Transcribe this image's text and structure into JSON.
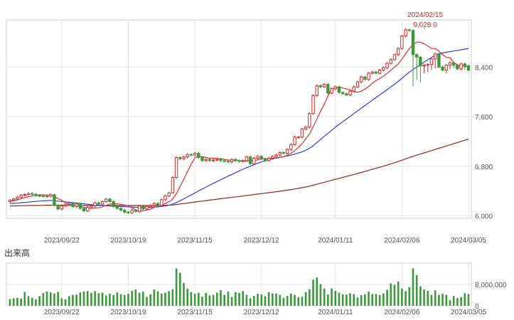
{
  "chart_data": {
    "type": "candlestick",
    "price_axis": {
      "ticks": [
        "8,400",
        "7,600",
        "6,800",
        "6,000"
      ],
      "tick_values": [
        8400,
        7600,
        6800,
        6000
      ],
      "ylim": [
        5960,
        9160
      ]
    },
    "x_tick_labels": [
      "2023/09/22",
      "2023/10/19",
      "2023/11/15",
      "2023/12/12",
      "2024/01/11",
      "2024/02/06",
      "2024/03/05"
    ],
    "x_tick_index": [
      14,
      32,
      50,
      68,
      88,
      106,
      124
    ],
    "annotation": {
      "date": "2024/02/15",
      "value_label": "9,028.0",
      "index": 112,
      "value": 9028
    },
    "volume_title": "出来高",
    "volume_axis": {
      "ticks": [
        "8,000,000",
        "0"
      ],
      "tick_values": [
        8000000,
        0
      ],
      "ylim": [
        0,
        16000000
      ]
    },
    "colors": {
      "up": "#d42a2a",
      "down": "#3a9a3a",
      "ma_short": "#e03030",
      "ma_mid": "#2f3fd8",
      "ma_long": "#8b2a1a",
      "volume": "#3a9a3a",
      "grid": "#e6e6e6",
      "frame": "#cccccc"
    },
    "series": {
      "close": [
        6250,
        6272,
        6300,
        6331,
        6344,
        6360,
        6348,
        6327,
        6320,
        6318,
        6316,
        6340,
        6170,
        6110,
        6160,
        6180,
        6200,
        6150,
        6190,
        6120,
        6080,
        6140,
        6160,
        6210,
        6190,
        6230,
        6270,
        6230,
        6150,
        6120,
        6090,
        6060,
        6050,
        6090,
        6070,
        6160,
        6110,
        6150,
        6170,
        6200,
        6170,
        6260,
        6320,
        6370,
        6620,
        6940,
        6920,
        6950,
        6990,
        6980,
        7010,
        6940,
        6890,
        6910,
        6890,
        6900,
        6910,
        6890,
        6880,
        6870,
        6910,
        6890,
        6880,
        6890,
        6950,
        6840,
        6930,
        6960,
        6920,
        6890,
        6930,
        6960,
        6980,
        7020,
        7010,
        7070,
        7150,
        7270,
        7270,
        7400,
        7430,
        7650,
        7940,
        8100,
        8080,
        8120,
        7980,
        8050,
        8080,
        7990,
        7970,
        7950,
        8010,
        8080,
        8160,
        8240,
        8200,
        8300,
        8320,
        8300,
        8350,
        8390,
        8460,
        8520,
        8600,
        8700,
        8900,
        9000,
        8990,
        8600,
        8560,
        8420,
        8430,
        8440,
        8530,
        8610,
        8400,
        8350,
        8430,
        8470,
        8430,
        8370,
        8450,
        8420,
        8350
      ],
      "open": [
        6230,
        6250,
        6272,
        6300,
        6331,
        6344,
        6360,
        6348,
        6327,
        6320,
        6318,
        6316,
        6340,
        6170,
        6110,
        6160,
        6180,
        6200,
        6150,
        6190,
        6120,
        6080,
        6140,
        6160,
        6210,
        6190,
        6230,
        6270,
        6230,
        6150,
        6120,
        6090,
        6060,
        6050,
        6090,
        6070,
        6160,
        6110,
        6150,
        6170,
        6200,
        6170,
        6260,
        6320,
        6370,
        6620,
        6940,
        6920,
        6950,
        6990,
        6980,
        7010,
        6940,
        6890,
        6910,
        6890,
        6900,
        6910,
        6890,
        6880,
        6870,
        6910,
        6890,
        6880,
        6890,
        6950,
        6840,
        6930,
        6960,
        6920,
        6890,
        6930,
        6960,
        6980,
        7020,
        7010,
        7070,
        7150,
        7270,
        7270,
        7400,
        7430,
        7650,
        7940,
        8100,
        8080,
        8120,
        7980,
        8050,
        8080,
        7990,
        7970,
        7950,
        8010,
        8080,
        8160,
        8240,
        8200,
        8300,
        8320,
        8300,
        8350,
        8390,
        8460,
        8520,
        8600,
        8700,
        8900,
        9000,
        8990,
        8600,
        8560,
        8420,
        8430,
        8440,
        8530,
        8610,
        8400,
        8350,
        8430,
        8470,
        8430,
        8370,
        8450,
        8420
      ],
      "high": [
        6273,
        6293,
        6321,
        6352,
        6365,
        6381,
        6390,
        6369,
        6348,
        6341,
        6339,
        6361,
        6361,
        6191,
        6181,
        6201,
        6221,
        6221,
        6211,
        6211,
        6141,
        6161,
        6181,
        6231,
        6231,
        6251,
        6291,
        6291,
        6251,
        6171,
        6141,
        6111,
        6081,
        6111,
        6111,
        6181,
        6181,
        6171,
        6191,
        6221,
        6221,
        6281,
        6341,
        6391,
        6641,
        6961,
        6961,
        6971,
        7011,
        7011,
        7031,
        7031,
        6961,
        6931,
        6931,
        6921,
        6931,
        6931,
        6911,
        6901,
        6931,
        6931,
        6911,
        6911,
        6971,
        6971,
        6951,
        6981,
        6981,
        6941,
        6951,
        6981,
        7001,
        7041,
        7041,
        7091,
        7171,
        7291,
        7291,
        7421,
        7451,
        7671,
        7961,
        8121,
        8121,
        8141,
        8141,
        8071,
        8101,
        8101,
        8011,
        7991,
        8031,
        8101,
        8181,
        8261,
        8261,
        8321,
        8341,
        8341,
        8371,
        8411,
        8481,
        8541,
        8621,
        8721,
        8921,
        9028,
        9021,
        9011,
        8621,
        8581,
        8451,
        8461,
        8551,
        8631,
        8631,
        8421,
        8451,
        8491,
        8491,
        8451,
        8471,
        8471,
        8441
      ],
      "low": [
        6209,
        6229,
        6251,
        6279,
        6310,
        6323,
        6327,
        6306,
        6299,
        6297,
        6295,
        6295,
        6149,
        6089,
        6089,
        6139,
        6159,
        6129,
        6129,
        6099,
        6059,
        6059,
        6119,
        6139,
        6169,
        6169,
        6209,
        6209,
        6129,
        6099,
        6069,
        6039,
        6029,
        6029,
        6049,
        6049,
        6089,
        6089,
        6129,
        6149,
        6149,
        6149,
        6239,
        6299,
        6349,
        6599,
        6899,
        6899,
        6929,
        6959,
        6959,
        6919,
        6869,
        6869,
        6869,
        6869,
        6879,
        6869,
        6859,
        6849,
        6849,
        6869,
        6859,
        6859,
        6869,
        6819,
        6819,
        6909,
        6899,
        6869,
        6869,
        6909,
        6939,
        6959,
        6989,
        6989,
        7049,
        7129,
        7249,
        7249,
        7379,
        7409,
        7629,
        7919,
        8059,
        8059,
        7959,
        7959,
        8029,
        7969,
        7949,
        7929,
        7929,
        7989,
        8059,
        8139,
        8179,
        8179,
        8279,
        8279,
        8279,
        8329,
        8369,
        8439,
        8499,
        8579,
        8679,
        8879,
        8969,
        8090,
        8200,
        8150,
        8300,
        8320,
        8350,
        8380,
        8380,
        8330,
        8300,
        8360,
        8390,
        8350,
        8340,
        8360,
        8330
      ],
      "ma_short": [
        6238,
        6243,
        6258,
        6277,
        6293,
        6307,
        6321,
        6333,
        6340,
        6339,
        6334,
        6328,
        6308,
        6278,
        6250,
        6210,
        6180,
        6171,
        6163,
        6156,
        6135,
        6121,
        6118,
        6129,
        6130,
        6146,
        6170,
        6188,
        6195,
        6194,
        6187,
        6176,
        6163,
        6126,
        6097,
        6081,
        6083,
        6094,
        6108,
        6135,
        6160,
        6175,
        6198,
        6227,
        6271,
        6357,
        6474,
        6590,
        6715,
        6830,
        6937,
        6960,
        6953,
        6942,
        6929,
        6930,
        6926,
        6924,
        6911,
        6901,
        6898,
        6892,
        6890,
        6884,
        6885,
        6891,
        6891,
        6903,
        6919,
        6920,
        6927,
        6929,
        6938,
        6944,
        6955,
        6975,
        7007,
        7052,
        7102,
        7165,
        7243,
        7318,
        7438,
        7561,
        7688,
        7798,
        7935,
        8037,
        8073,
        8072,
        8062,
        8049,
        8029,
        8005,
        7993,
        8011,
        8045,
        8087,
        8138,
        8184,
        8214,
        8255,
        8297,
        8348,
        8401,
        8451,
        8528,
        8615,
        8697,
        8766,
        8802,
        8800,
        8776,
        8738,
        8700,
        8699,
        8656,
        8599,
        8557,
        8551,
        8470,
        8438,
        8414,
        8411,
        8405
      ],
      "ma_mid": [
        6200,
        6202,
        6206,
        6211,
        6216,
        6222,
        6228,
        6233,
        6238,
        6242,
        6246,
        6249,
        6244,
        6238,
        6232,
        6226,
        6219,
        6212,
        6207,
        6201,
        6194,
        6187,
        6181,
        6176,
        6172,
        6168,
        6164,
        6160,
        6156,
        6153,
        6150,
        6147,
        6145,
        6142,
        6139,
        6138,
        6137,
        6137,
        6138,
        6142,
        6145,
        6152,
        6160,
        6171,
        6188,
        6215,
        6244,
        6274,
        6305,
        6336,
        6370,
        6402,
        6433,
        6464,
        6495,
        6524,
        6553,
        6583,
        6612,
        6640,
        6668,
        6696,
        6725,
        6751,
        6777,
        6800,
        6825,
        6848,
        6870,
        6890,
        6906,
        6918,
        6931,
        6942,
        6955,
        6966,
        6978,
        6994,
        7013,
        7034,
        7058,
        7090,
        7131,
        7181,
        7232,
        7282,
        7331,
        7379,
        7428,
        7474,
        7518,
        7561,
        7605,
        7649,
        7693,
        7738,
        7779,
        7823,
        7866,
        7909,
        7951,
        7993,
        8036,
        8078,
        8122,
        8168,
        8219,
        8269,
        8319,
        8358,
        8399,
        8439,
        8479,
        8517,
        8555,
        8592,
        8615,
        8627,
        8639,
        8649,
        8659,
        8667,
        8678,
        8690,
        8700
      ],
      "ma_long": [
        6160,
        6161,
        6162,
        6163,
        6164,
        6166,
        6167,
        6168,
        6169,
        6170,
        6171,
        6172,
        6172,
        6171,
        6171,
        6170,
        6170,
        6170,
        6169,
        6169,
        6168,
        6168,
        6168,
        6168,
        6167,
        6167,
        6167,
        6167,
        6167,
        6167,
        6166,
        6166,
        6166,
        6166,
        6166,
        6166,
        6166,
        6166,
        6166,
        6167,
        6167,
        6168,
        6170,
        6172,
        6176,
        6183,
        6190,
        6198,
        6206,
        6214,
        6223,
        6231,
        6238,
        6246,
        6254,
        6261,
        6269,
        6276,
        6283,
        6291,
        6298,
        6306,
        6312,
        6320,
        6328,
        6335,
        6343,
        6351,
        6358,
        6365,
        6373,
        6381,
        6389,
        6397,
        6406,
        6414,
        6423,
        6433,
        6443,
        6454,
        6465,
        6478,
        6493,
        6509,
        6525,
        6541,
        6557,
        6573,
        6589,
        6605,
        6620,
        6635,
        6651,
        6667,
        6683,
        6700,
        6716,
        6733,
        6750,
        6767,
        6784,
        6801,
        6819,
        6838,
        6857,
        6876,
        6897,
        6919,
        6940,
        6959,
        6978,
        6997,
        7015,
        7033,
        7052,
        7071,
        7090,
        7108,
        7127,
        7145,
        7164,
        7182,
        7201,
        7219,
        7238
      ],
      "volume": [
        2500000,
        2800000,
        3000000,
        2700000,
        5200000,
        3600000,
        3000000,
        2400000,
        3600000,
        4800000,
        5300000,
        5000000,
        4600000,
        5200000,
        2800000,
        2400000,
        3600000,
        4100000,
        4200000,
        5000000,
        5300000,
        5500000,
        4800000,
        5500000,
        4700000,
        4900000,
        3900000,
        4500000,
        4000000,
        5000000,
        4300000,
        4100000,
        4500000,
        5600000,
        6100000,
        4900000,
        5300000,
        3300000,
        4300000,
        6100000,
        5400000,
        4600000,
        4900000,
        5500000,
        6200000,
        14000000,
        12400000,
        8600000,
        6400000,
        5100000,
        4500000,
        4900000,
        3400000,
        4800000,
        3900000,
        4100000,
        4900000,
        5900000,
        4100000,
        5300000,
        3300000,
        5100000,
        4800000,
        5500000,
        4100000,
        2800000,
        3700000,
        4500000,
        4200000,
        3600000,
        5100000,
        4600000,
        4600000,
        4100000,
        2900000,
        3700000,
        4600000,
        4100000,
        3200000,
        3400000,
        5100000,
        6200000,
        9800000,
        10600000,
        8100000,
        6500000,
        4300000,
        6500000,
        5600000,
        4900000,
        4300000,
        4200000,
        4700000,
        4400000,
        3100000,
        4000000,
        4300000,
        5300000,
        4400000,
        4400000,
        4000000,
        4600000,
        6000000,
        8400000,
        7900000,
        9100000,
        6500000,
        5500000,
        7000000,
        14000000,
        11500000,
        7300000,
        6100000,
        5600000,
        4100000,
        5800000,
        4100000,
        4500000,
        4100000,
        2100000,
        3700000,
        2900000,
        3200000,
        4700000,
        4400000
      ]
    }
  }
}
